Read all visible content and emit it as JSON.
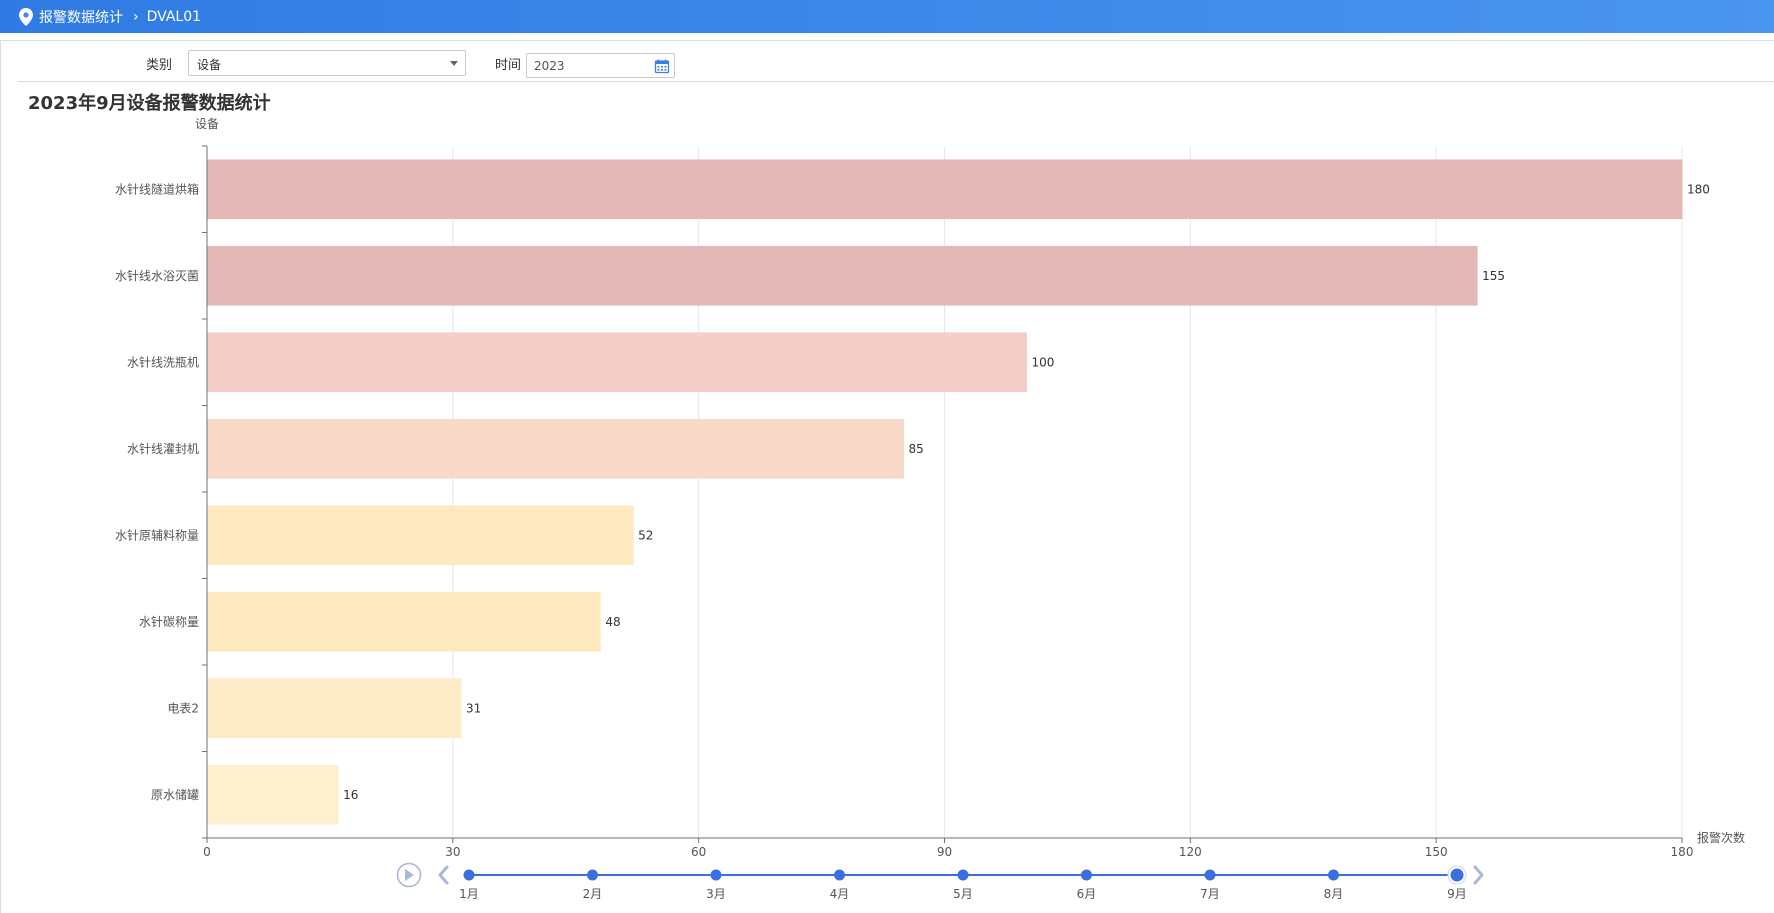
{
  "header": {
    "breadcrumb": [
      "报警数据统计",
      "DVAL01"
    ]
  },
  "filters": {
    "category_label": "类别",
    "category_value": "设备",
    "time_label": "时间",
    "time_value": "2023"
  },
  "colors": {
    "header_start": "#2f7be3",
    "header_end": "#4a95ee",
    "timeline_blue": "#3b6fe0"
  },
  "chart_data": {
    "type": "bar",
    "orientation": "horizontal",
    "title": "2023年9月设备报警数据统计",
    "ylabel": "设备",
    "xlabel": "报警次数",
    "xlim": [
      0,
      180
    ],
    "xticks": [
      0,
      30,
      60,
      90,
      120,
      150,
      180
    ],
    "grid": true,
    "categories": [
      "水针线隧道烘箱",
      "水针线水浴灭菌",
      "水针线洗瓶机",
      "水针线灌封机",
      "水针原辅料称量",
      "水针碳称量",
      "电表2",
      "原水储罐"
    ],
    "values": [
      180,
      155,
      100,
      85,
      52,
      48,
      31,
      16
    ],
    "colors": [
      "#e5b8b8",
      "#e5b8b8",
      "#f4cdc9",
      "#f8d8c7",
      "#fee8c0",
      "#fee8c0",
      "#fdebc7",
      "#fef0cd"
    ],
    "timeline": {
      "months": [
        "1月",
        "2月",
        "3月",
        "4月",
        "5月",
        "6月",
        "7月",
        "8月",
        "9月"
      ],
      "current": "9月"
    }
  }
}
